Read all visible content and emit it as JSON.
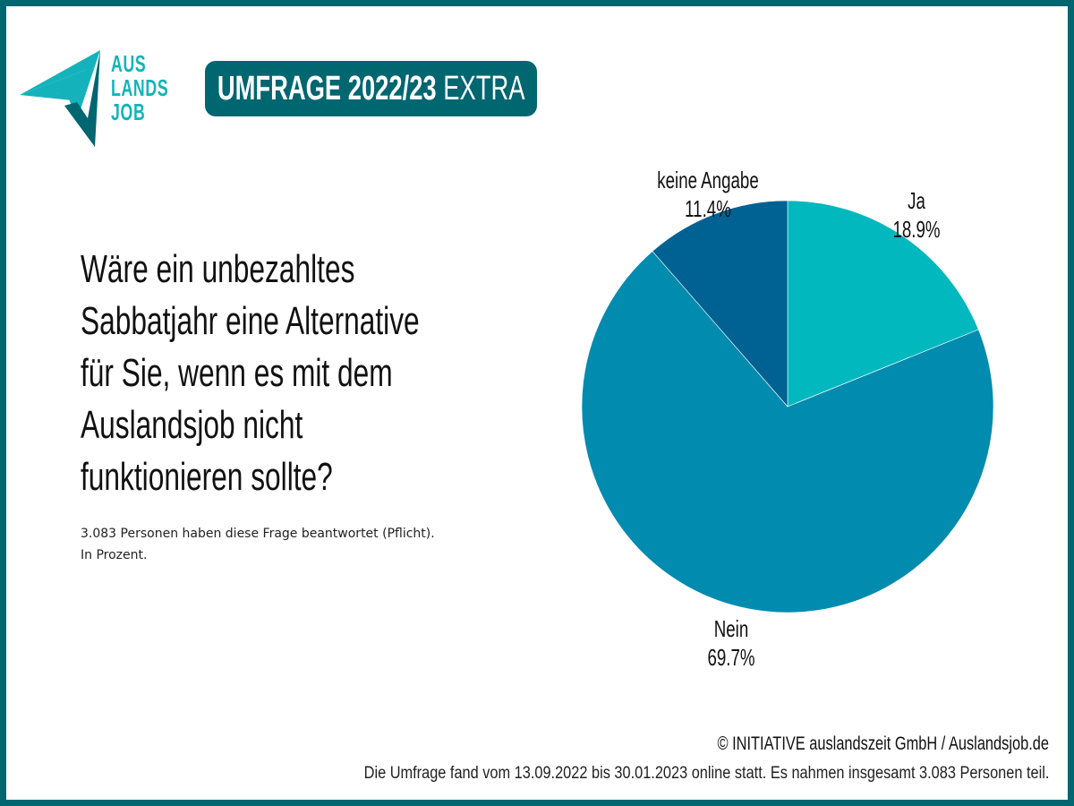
{
  "logo": {
    "lines": [
      "AUS",
      "LANDS",
      "JOB"
    ],
    "colors": {
      "light": "#14b3bb",
      "dark": "#006670"
    }
  },
  "badge": {
    "bold": "UMFRAGE 2022/23",
    "regular": " EXTRA"
  },
  "question": {
    "lines": [
      "Wäre ein unbezahltes",
      "Sabbatjahr eine Alternative",
      "für Sie, wenn es mit dem",
      "Auslandsjob nicht",
      "funktionieren sollte?"
    ]
  },
  "note": {
    "line1": "3.083 Personen haben diese Frage beantwortet (Pflicht).",
    "line2": "In Prozent."
  },
  "chart_data": {
    "type": "pie",
    "title": "Wäre ein unbezahltes Sabbatjahr eine Alternative für Sie, wenn es mit dem Auslandsjob nicht funktionieren sollte?",
    "unit": "%",
    "start": "12 o'clock, clockwise",
    "categories": [
      "Ja",
      "Nein",
      "keine Angabe"
    ],
    "values": [
      18.9,
      69.7,
      11.4
    ],
    "labels": [
      "18.9%",
      "69.7%",
      "11.4%"
    ],
    "colors": [
      "#00b8be",
      "#008baf",
      "#006292"
    ],
    "legend": "labels outside slices"
  },
  "credit": "© INITIATIVE auslandszeit GmbH / Auslandsjob.de",
  "footer": "Die Umfrage fand vom 13.09.2022 bis 30.01.2023 online statt. Es nahmen insgesamt 3.083 Personen teil."
}
